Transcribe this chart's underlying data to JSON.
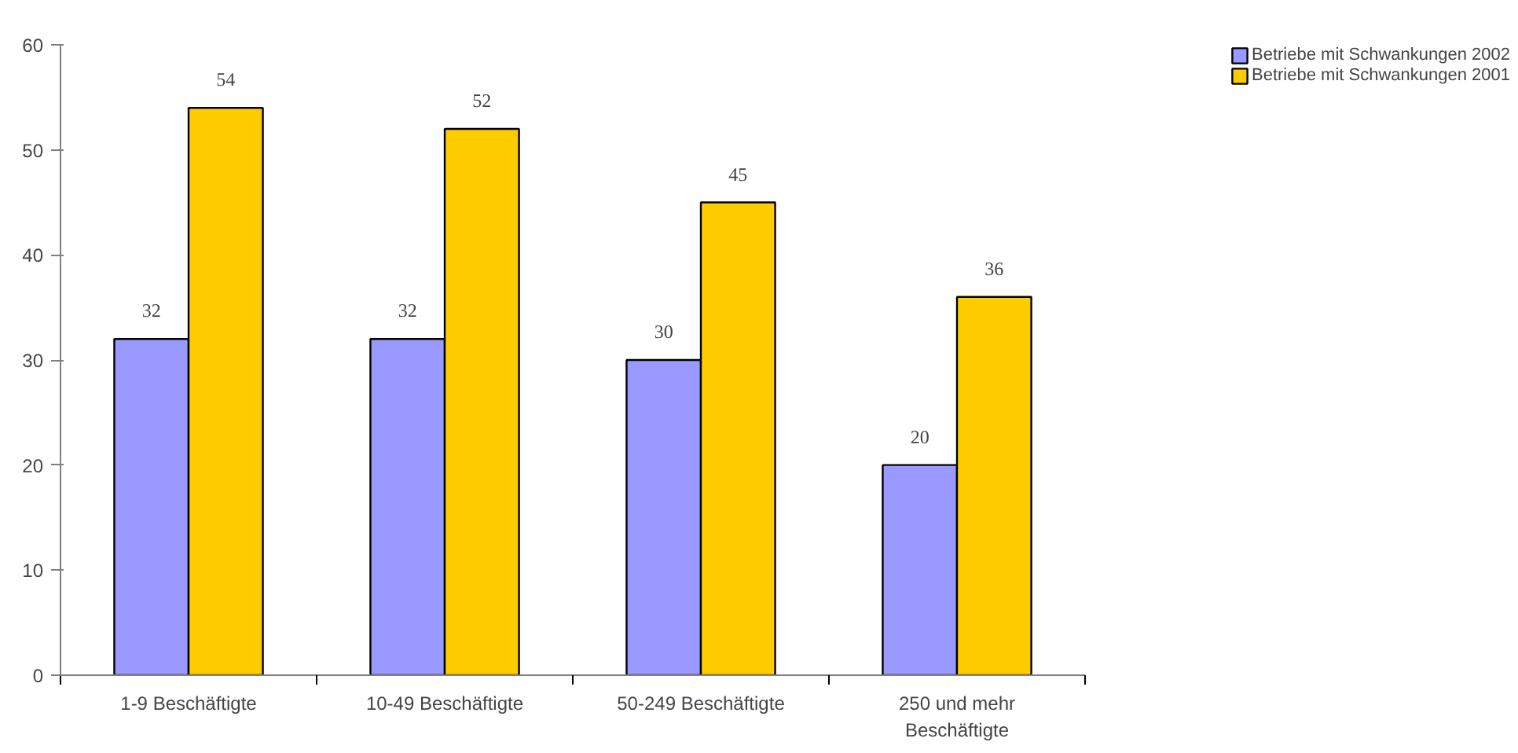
{
  "chart_data": {
    "type": "bar",
    "categories": [
      "1-9 Beschäftigte",
      "10-49 Beschäftigte",
      "50-249 Beschäftigte",
      "250 und mehr\nBeschäftigte"
    ],
    "series": [
      {
        "name": "Betriebe mit Schwankungen 2002",
        "color": "#9999ff",
        "values": [
          32,
          32,
          30,
          20
        ]
      },
      {
        "name": "Betriebe mit Schwankungen 2001",
        "color": "#ffcc00",
        "values": [
          54,
          52,
          45,
          36
        ]
      }
    ],
    "ylim": [
      0,
      60
    ],
    "yticks": [
      0,
      10,
      20,
      30,
      40,
      50,
      60
    ],
    "data_labels": true,
    "grid": false,
    "legend": "top right"
  }
}
